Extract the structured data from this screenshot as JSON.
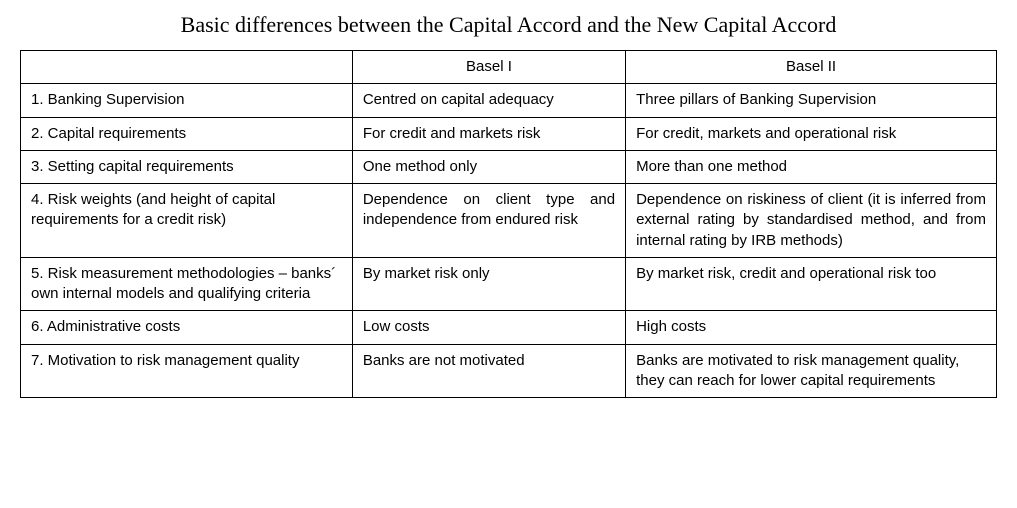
{
  "title": "Basic differences between the Capital Accord and the New Capital Accord",
  "table": {
    "type": "table",
    "background_color": "#ffffff",
    "border_color": "#000000",
    "font_family": "Arial",
    "title_font_family": "Times New Roman",
    "title_fontsize": 22,
    "cell_fontsize": 15,
    "columns": [
      {
        "label": "",
        "width_pct": 34
      },
      {
        "label": "Basel I",
        "width_pct": 28
      },
      {
        "label": "Basel II",
        "width_pct": 38
      }
    ],
    "rows": [
      {
        "label": "1. Banking Supervision",
        "basel1": "Centred on capital adequacy",
        "basel2": "Three pillars of Banking Supervision",
        "justify": false
      },
      {
        "label": "2. Capital requirements",
        "basel1": "For credit and markets risk",
        "basel2": "For credit, markets and operational risk",
        "justify": false
      },
      {
        "label": "3. Setting capital requirements",
        "basel1": "One method only",
        "basel2": "More than one method",
        "justify": false
      },
      {
        "label": "4. Risk weights (and height of capital requirements for a credit risk)",
        "basel1": "Dependence on client type and independence from endured risk",
        "basel2": "Dependence on riskiness of client (it is inferred from external rating by standardised method, and from internal rating by IRB methods)",
        "justify": true
      },
      {
        "label": "5. Risk measurement methodologies – banks´ own internal models and qualifying criteria",
        "basel1": "By market risk only",
        "basel2": "By market risk, credit and operational risk too",
        "justify": false
      },
      {
        "label": "6. Administrative costs",
        "basel1": "Low costs",
        "basel2": "High costs",
        "justify": false
      },
      {
        "label": "7. Motivation to risk management quality",
        "basel1": "Banks are not motivated",
        "basel2": "Banks are motivated to risk management quality, they can reach for lower capital requirements",
        "justify": false
      }
    ]
  }
}
